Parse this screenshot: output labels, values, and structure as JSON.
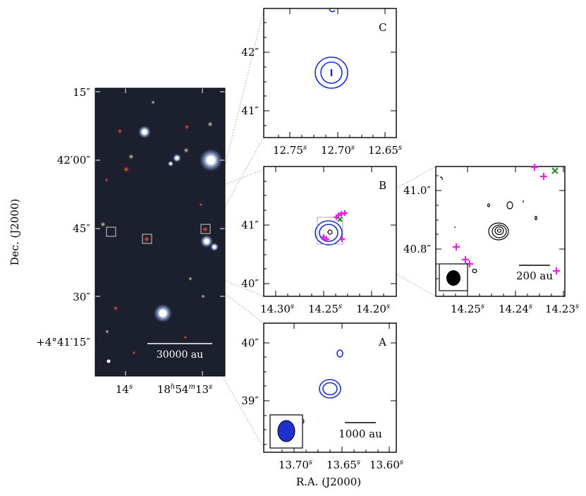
{
  "sky_image": {
    "ylabel": "Dec. (J2000)",
    "yticks": [
      "15″",
      "42′00″",
      "45″",
      "30″",
      "+4°41′15″"
    ],
    "xticks": [
      "14",
      "s",
      "18",
      "h",
      "54",
      "m",
      "13",
      "s"
    ],
    "scalebar": "30000 au"
  },
  "panel_c": {
    "letter": "C",
    "yticks": [
      "42″",
      "41″"
    ],
    "xticks": [
      "12.75",
      "12.70",
      "12.65"
    ],
    "xunit": "s"
  },
  "panel_b": {
    "letter": "B",
    "yticks": [
      "41″",
      "40″"
    ],
    "xticks": [
      "14.30",
      "14.25",
      "14.20"
    ],
    "xunit": "s"
  },
  "panel_a": {
    "letter": "A",
    "yticks": [
      "40″",
      "39″"
    ],
    "xticks": [
      "13.70",
      "13.65",
      "13.60"
    ],
    "xunit": "s",
    "scalebar": "1000 au",
    "xlabel": "R.A. (J2000)"
  },
  "panel_zoom": {
    "yticks": [
      "41.0″",
      "40.8″"
    ],
    "xticks": [
      "14.25",
      "14.24",
      "14.23"
    ],
    "xunit": "s",
    "scalebar": "200 au"
  },
  "colors": {
    "blue_contour": "#1f2fd0",
    "black_contour": "#000000",
    "magenta_marker": "#e61ee6",
    "green_marker": "#2a8a2a",
    "sky_background": "#1c1f2e"
  }
}
